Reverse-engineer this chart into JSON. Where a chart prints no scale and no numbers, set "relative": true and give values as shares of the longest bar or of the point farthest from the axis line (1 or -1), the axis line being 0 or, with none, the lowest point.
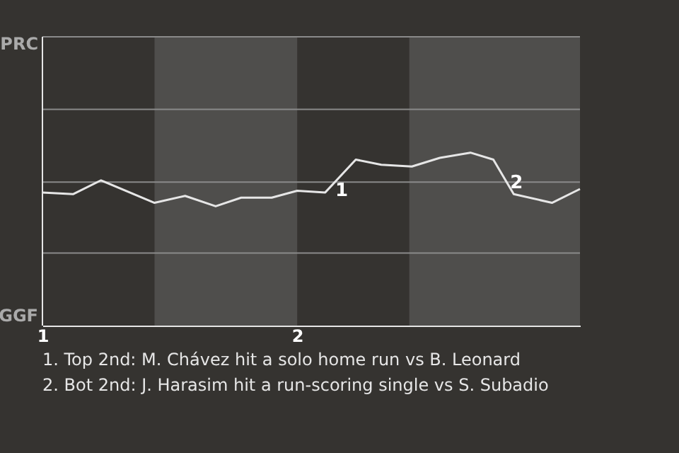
{
  "chart_data": {
    "type": "line",
    "relative": true,
    "x": [
      1.0,
      1.12,
      1.23,
      1.44,
      1.56,
      1.68,
      1.78,
      1.9,
      2.0,
      2.11,
      2.23,
      2.33,
      2.45,
      2.56,
      2.68,
      2.77,
      2.85,
      3.0,
      3.11
    ],
    "series": [
      {
        "color": "#e6e6e6",
        "values": [
          0.77,
          0.76,
          0.84,
          0.71,
          0.75,
          0.69,
          0.74,
          0.74,
          0.78,
          0.77,
          0.96,
          0.93,
          0.92,
          0.97,
          1.0,
          0.96,
          0.76,
          0.71,
          0.79
        ]
      }
    ],
    "xlim": [
      1,
      3.11
    ],
    "xticks": [
      1,
      2
    ],
    "ref_lines": [
      {
        "axis": "y",
        "value": 0.42,
        "color": "#8a8a8a"
      },
      {
        "axis": "y",
        "value": 0.83,
        "color": "#8a8a8a"
      },
      {
        "axis": "y",
        "value": 1.25,
        "color": "#8a8a8a"
      },
      {
        "axis": "y",
        "value": 1.67,
        "color": "#8a8a8a"
      }
    ],
    "bands": [
      {
        "axis": "x",
        "from": 1.44,
        "to": 2.0,
        "color": "#4f4e4c"
      },
      {
        "axis": "x",
        "from": 2.44,
        "to": 3.11,
        "color": "#4f4e4c"
      }
    ],
    "annotations": [
      "PRC",
      "GGF",
      {
        "text": "1",
        "x": 2.23,
        "y": 0.96
      },
      {
        "text": "2",
        "x": 2.85,
        "y": 0.76
      },
      "1. Top 2nd: M. Chávez hit a solo home run vs B. Leonard",
      "2. Bot 2nd: J. Harasim hit a run-scoring single vs S. Subadio"
    ]
  }
}
